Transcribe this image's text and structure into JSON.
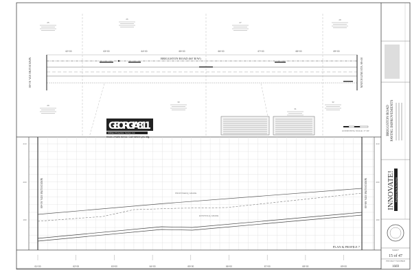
{
  "plan": {
    "road_label": "BRIGGSTON ROAD (60' R/W)",
    "match_line_left": "MATCH LINE STA. 61+00",
    "match_line_right": "MATCH LINE STA. 69+50",
    "stations": [
      "62+00",
      "63+00",
      "64+00",
      "65+00",
      "66+00",
      "67+00",
      "68+00",
      "69+00"
    ],
    "parcel_numbers": [
      "25",
      "26",
      "27",
      "28",
      "29",
      "30",
      "31",
      "32"
    ],
    "scale_label": "HORIZONTAL SCALE: 1\"=40'"
  },
  "logo": {
    "name": "GEORGIA811",
    "sub": "Utilities Protection Center, Inc.",
    "tagline": "Know what's below. Call before you dig."
  },
  "profile": {
    "title": "PLAN & PROFILE 7",
    "match_line_left": "MATCH LINE STA. 61+00",
    "match_line_right": "MATCH LINE STA. 69+50",
    "elevations": [
      "210",
      "200",
      "190"
    ],
    "stations": [
      "61+00",
      "62+00",
      "63+00",
      "64+00",
      "65+00",
      "66+00",
      "67+00",
      "68+00",
      "69+00"
    ],
    "labels": {
      "proposed": "PROPOSED ℄ GRADE",
      "existing": "EXISTING ℄ GRADE"
    }
  },
  "title_block": {
    "project": "BRIGGSTON ROAD",
    "project_sub": "PAVING IMPROVEMENTS",
    "firm": "INNOVATE!",
    "firm_sub": "Engineering & Surveying",
    "sheet_label": "SHEET",
    "sheet": "15 of 47",
    "project_number_label": "PROJECT NUMBER",
    "project_number": "1669"
  }
}
